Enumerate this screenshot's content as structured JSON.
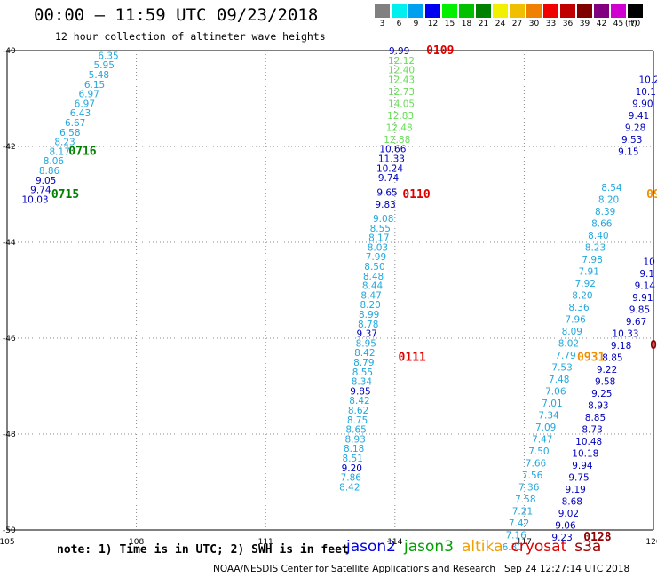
{
  "title": "00:00 – 11:59 UTC 09/23/2018",
  "subtitle": "12 hour collection of altimeter wave heights",
  "legend": {
    "unit": "(ft)",
    "bins": [
      {
        "label": "3",
        "color": "#808080"
      },
      {
        "label": "6",
        "color": "#00f0f0"
      },
      {
        "label": "9",
        "color": "#00a0f0"
      },
      {
        "label": "12",
        "color": "#0000f0"
      },
      {
        "label": "15",
        "color": "#00f000"
      },
      {
        "label": "18",
        "color": "#00c000"
      },
      {
        "label": "21",
        "color": "#008000"
      },
      {
        "label": "24",
        "color": "#f0f000"
      },
      {
        "label": "27",
        "color": "#f0c000"
      },
      {
        "label": "30",
        "color": "#f08000"
      },
      {
        "label": "33",
        "color": "#f00000"
      },
      {
        "label": "36",
        "color": "#c00000"
      },
      {
        "label": "39",
        "color": "#800000"
      },
      {
        "label": "42",
        "color": "#800080"
      },
      {
        "label": "45",
        "color": "#d000d0"
      },
      {
        "label": "70",
        "color": "#000000"
      }
    ]
  },
  "note": "note: 1) Time is in UTC; 2) SWH is in feet",
  "satellites": [
    {
      "name": "jason2",
      "color": "#0000e0"
    },
    {
      "name": "jason3",
      "color": "#00a000"
    },
    {
      "name": "altika",
      "color": "#f0a000"
    },
    {
      "name": "cryosat",
      "color": "#e00000"
    },
    {
      "name": "s3a",
      "color": "#a00000"
    }
  ],
  "footer": "NOAA/NESDIS Center for Satellite Applications and Research   Sep 24 12:27:14 UTC 2018",
  "chart_data": {
    "type": "scatter",
    "xlim": [
      105,
      120
    ],
    "ylim": [
      -50,
      -40
    ],
    "xticks": [
      "105",
      "108",
      "111",
      "114",
      "117",
      "120"
    ],
    "yticks": [
      "-40",
      "-42",
      "-44",
      "-46",
      "-48",
      "-50"
    ],
    "colors": {
      "sky": "#22a8dc",
      "navy": "#0000c0",
      "lime": "#66dd55",
      "green": "#008000",
      "red": "#e00000",
      "orange": "#f09000",
      "maroon": "#900000"
    },
    "series": [
      {
        "color_key": "sky",
        "points": [
          {
            "x": 107.35,
            "y": -40.1,
            "v": "6.35"
          },
          {
            "x": 107.25,
            "y": -40.3,
            "v": "5.95"
          },
          {
            "x": 107.13,
            "y": -40.5,
            "v": "5.48"
          },
          {
            "x": 107.03,
            "y": -40.7,
            "v": "6.15"
          },
          {
            "x": 106.9,
            "y": -40.9,
            "v": "6.97"
          },
          {
            "x": 106.8,
            "y": -41.1,
            "v": "6.97"
          },
          {
            "x": 106.7,
            "y": -41.3,
            "v": "6.43"
          },
          {
            "x": 106.58,
            "y": -41.5,
            "v": "6.67"
          },
          {
            "x": 106.46,
            "y": -41.7,
            "v": "6.58"
          },
          {
            "x": 106.34,
            "y": -41.9,
            "v": "8.23"
          },
          {
            "x": 106.22,
            "y": -42.1,
            "v": "8.17"
          },
          {
            "x": 106.08,
            "y": -42.3,
            "v": "8.06"
          },
          {
            "x": 105.98,
            "y": -42.5,
            "v": "8.86"
          },
          {
            "x": 113.73,
            "y": -43.5,
            "v": "9.08"
          },
          {
            "x": 113.66,
            "y": -43.7,
            "v": "8.55"
          },
          {
            "x": 113.63,
            "y": -43.9,
            "v": "8.17"
          },
          {
            "x": 113.6,
            "y": -44.1,
            "v": "8.03"
          },
          {
            "x": 113.56,
            "y": -44.3,
            "v": "7.99"
          },
          {
            "x": 113.53,
            "y": -44.5,
            "v": "8.50"
          },
          {
            "x": 113.5,
            "y": -44.7,
            "v": "8.48"
          },
          {
            "x": 113.48,
            "y": -44.9,
            "v": "8.44"
          },
          {
            "x": 113.45,
            "y": -45.1,
            "v": "8.47"
          },
          {
            "x": 113.43,
            "y": -45.3,
            "v": "8.20"
          },
          {
            "x": 113.4,
            "y": -45.5,
            "v": "8.99"
          },
          {
            "x": 113.38,
            "y": -45.7,
            "v": "8.78"
          },
          {
            "x": 113.33,
            "y": -46.1,
            "v": "8.95"
          },
          {
            "x": 113.3,
            "y": -46.3,
            "v": "8.42"
          },
          {
            "x": 113.28,
            "y": -46.5,
            "v": "8.79"
          },
          {
            "x": 113.25,
            "y": -46.7,
            "v": "8.55"
          },
          {
            "x": 113.23,
            "y": -46.9,
            "v": "8.34"
          },
          {
            "x": 113.18,
            "y": -47.3,
            "v": "8.42"
          },
          {
            "x": 113.15,
            "y": -47.5,
            "v": "8.62"
          },
          {
            "x": 113.13,
            "y": -47.7,
            "v": "8.75"
          },
          {
            "x": 113.1,
            "y": -47.9,
            "v": "8.65"
          },
          {
            "x": 113.08,
            "y": -48.1,
            "v": "8.93"
          },
          {
            "x": 113.05,
            "y": -48.3,
            "v": "8.18"
          },
          {
            "x": 113.02,
            "y": -48.5,
            "v": "8.51"
          },
          {
            "x": 112.98,
            "y": -48.9,
            "v": "7.86"
          },
          {
            "x": 112.95,
            "y": -49.1,
            "v": "8.42"
          },
          {
            "x": 119.03,
            "y": -42.85,
            "v": "8.54"
          },
          {
            "x": 118.96,
            "y": -43.1,
            "v": "8.20"
          },
          {
            "x": 118.88,
            "y": -43.35,
            "v": "8.39"
          },
          {
            "x": 118.8,
            "y": -43.6,
            "v": "8.66"
          },
          {
            "x": 118.72,
            "y": -43.85,
            "v": "8.40"
          },
          {
            "x": 118.65,
            "y": -44.1,
            "v": "8.23"
          },
          {
            "x": 118.58,
            "y": -44.35,
            "v": "7.98"
          },
          {
            "x": 118.5,
            "y": -44.6,
            "v": "7.91"
          },
          {
            "x": 118.42,
            "y": -44.85,
            "v": "7.92"
          },
          {
            "x": 118.35,
            "y": -45.1,
            "v": "8.20"
          },
          {
            "x": 118.27,
            "y": -45.35,
            "v": "8.36"
          },
          {
            "x": 118.19,
            "y": -45.6,
            "v": "7.96"
          },
          {
            "x": 118.11,
            "y": -45.85,
            "v": "8.09"
          },
          {
            "x": 118.03,
            "y": -46.1,
            "v": "8.02"
          },
          {
            "x": 117.96,
            "y": -46.35,
            "v": "7.79"
          },
          {
            "x": 117.88,
            "y": -46.6,
            "v": "7.53"
          },
          {
            "x": 117.81,
            "y": -46.85,
            "v": "7.48"
          },
          {
            "x": 117.73,
            "y": -47.1,
            "v": "7.06"
          },
          {
            "x": 117.65,
            "y": -47.35,
            "v": "7.01"
          },
          {
            "x": 117.57,
            "y": -47.6,
            "v": "7.34"
          },
          {
            "x": 117.5,
            "y": -47.85,
            "v": "7.09"
          },
          {
            "x": 117.42,
            "y": -48.1,
            "v": "7.47"
          },
          {
            "x": 117.34,
            "y": -48.35,
            "v": "7.50"
          },
          {
            "x": 117.27,
            "y": -48.6,
            "v": "7.66"
          },
          {
            "x": 117.19,
            "y": -48.85,
            "v": "7.56"
          },
          {
            "x": 117.11,
            "y": -49.1,
            "v": "7.36"
          },
          {
            "x": 117.03,
            "y": -49.35,
            "v": "7.58"
          },
          {
            "x": 116.96,
            "y": -49.6,
            "v": "7.21"
          },
          {
            "x": 116.88,
            "y": -49.85,
            "v": "7.42"
          },
          {
            "x": 116.81,
            "y": -50.1,
            "v": "7.16"
          },
          {
            "x": 116.73,
            "y": -50.35,
            "v": "6.30"
          }
        ]
      },
      {
        "color_key": "navy",
        "points": [
          {
            "x": 105.9,
            "y": -42.7,
            "v": "9.05"
          },
          {
            "x": 105.78,
            "y": -42.9,
            "v": "9.74"
          },
          {
            "x": 105.65,
            "y": -43.1,
            "v": "10.03"
          },
          {
            "x": 114.1,
            "y": -40.0,
            "v": "9.99"
          },
          {
            "x": 113.95,
            "y": -42.05,
            "v": "10.66"
          },
          {
            "x": 113.92,
            "y": -42.25,
            "v": "11.33"
          },
          {
            "x": 113.88,
            "y": -42.45,
            "v": "10.24"
          },
          {
            "x": 113.85,
            "y": -42.65,
            "v": "9.74"
          },
          {
            "x": 113.82,
            "y": -42.95,
            "v": "9.65"
          },
          {
            "x": 113.78,
            "y": -43.2,
            "v": "9.83"
          },
          {
            "x": 113.35,
            "y": -45.9,
            "v": "9.37"
          },
          {
            "x": 113.2,
            "y": -47.1,
            "v": "9.85"
          },
          {
            "x": 113.0,
            "y": -48.7,
            "v": "9.20"
          },
          {
            "x": 119.9,
            "y": -40.6,
            "v": "10.2"
          },
          {
            "x": 119.82,
            "y": -40.85,
            "v": "10.1"
          },
          {
            "x": 119.75,
            "y": -41.1,
            "v": "9.90"
          },
          {
            "x": 119.66,
            "y": -41.35,
            "v": "9.41"
          },
          {
            "x": 119.58,
            "y": -41.6,
            "v": "9.28"
          },
          {
            "x": 119.5,
            "y": -41.85,
            "v": "9.53"
          },
          {
            "x": 119.42,
            "y": -42.1,
            "v": "9.15"
          },
          {
            "x": 119.9,
            "y": -44.4,
            "v": "10"
          },
          {
            "x": 119.85,
            "y": -44.65,
            "v": "9.1"
          },
          {
            "x": 119.8,
            "y": -44.9,
            "v": "9.14"
          },
          {
            "x": 119.75,
            "y": -45.15,
            "v": "9.91"
          },
          {
            "x": 119.68,
            "y": -45.4,
            "v": "9.85"
          },
          {
            "x": 119.6,
            "y": -45.65,
            "v": "9.67"
          },
          {
            "x": 119.35,
            "y": -45.9,
            "v": "10.33"
          },
          {
            "x": 119.25,
            "y": -46.15,
            "v": "9.18"
          },
          {
            "x": 118.92,
            "y": -46.65,
            "v": "9.22"
          },
          {
            "x": 118.88,
            "y": -46.9,
            "v": "9.58"
          },
          {
            "x": 118.8,
            "y": -47.15,
            "v": "9.25"
          },
          {
            "x": 118.72,
            "y": -47.4,
            "v": "8.93"
          },
          {
            "x": 118.65,
            "y": -47.65,
            "v": "8.85"
          },
          {
            "x": 118.58,
            "y": -47.9,
            "v": "8.73"
          },
          {
            "x": 118.5,
            "y": -48.15,
            "v": "10.48"
          },
          {
            "x": 118.42,
            "y": -48.4,
            "v": "10.18"
          },
          {
            "x": 118.35,
            "y": -48.65,
            "v": "9.94"
          },
          {
            "x": 118.27,
            "y": -48.9,
            "v": "9.75"
          },
          {
            "x": 118.19,
            "y": -49.15,
            "v": "9.19"
          },
          {
            "x": 118.11,
            "y": -49.4,
            "v": "8.68"
          },
          {
            "x": 118.03,
            "y": -49.65,
            "v": "9.02"
          },
          {
            "x": 117.96,
            "y": -49.9,
            "v": "9.06"
          },
          {
            "x": 117.88,
            "y": -50.15,
            "v": "9.23"
          },
          {
            "x": 119.05,
            "y": -46.4,
            "v": "8.85"
          }
        ]
      },
      {
        "color_key": "lime",
        "points": [
          {
            "x": 114.15,
            "y": -40.2,
            "v": "12.12"
          },
          {
            "x": 114.15,
            "y": -40.4,
            "v": "12.40"
          },
          {
            "x": 114.15,
            "y": -40.6,
            "v": "12.43"
          },
          {
            "x": 114.15,
            "y": -40.85,
            "v": "12.73"
          },
          {
            "x": 114.15,
            "y": -41.1,
            "v": "14.05"
          },
          {
            "x": 114.13,
            "y": -41.35,
            "v": "12.83"
          },
          {
            "x": 114.1,
            "y": -41.6,
            "v": "12.48"
          },
          {
            "x": 114.05,
            "y": -41.85,
            "v": "12.88"
          }
        ]
      }
    ],
    "times": [
      {
        "label": "0716",
        "x": 106.75,
        "y": -42.1,
        "color_key": "green"
      },
      {
        "label": "0715",
        "x": 106.35,
        "y": -43.0,
        "color_key": "green"
      },
      {
        "label": "0109",
        "x": 115.05,
        "y": -40.0,
        "color_key": "red"
      },
      {
        "label": "0110",
        "x": 114.5,
        "y": -43.0,
        "color_key": "red"
      },
      {
        "label": "0111",
        "x": 114.4,
        "y": -46.4,
        "color_key": "red"
      },
      {
        "label": "0931",
        "x": 118.55,
        "y": -46.4,
        "color_key": "orange"
      },
      {
        "label": "0128",
        "x": 118.7,
        "y": -50.15,
        "color_key": "maroon"
      },
      {
        "label": "09",
        "x": 120.0,
        "y": -43.0,
        "color_key": "orange"
      },
      {
        "label": "0",
        "x": 120.0,
        "y": -46.15,
        "color_key": "maroon"
      }
    ]
  }
}
